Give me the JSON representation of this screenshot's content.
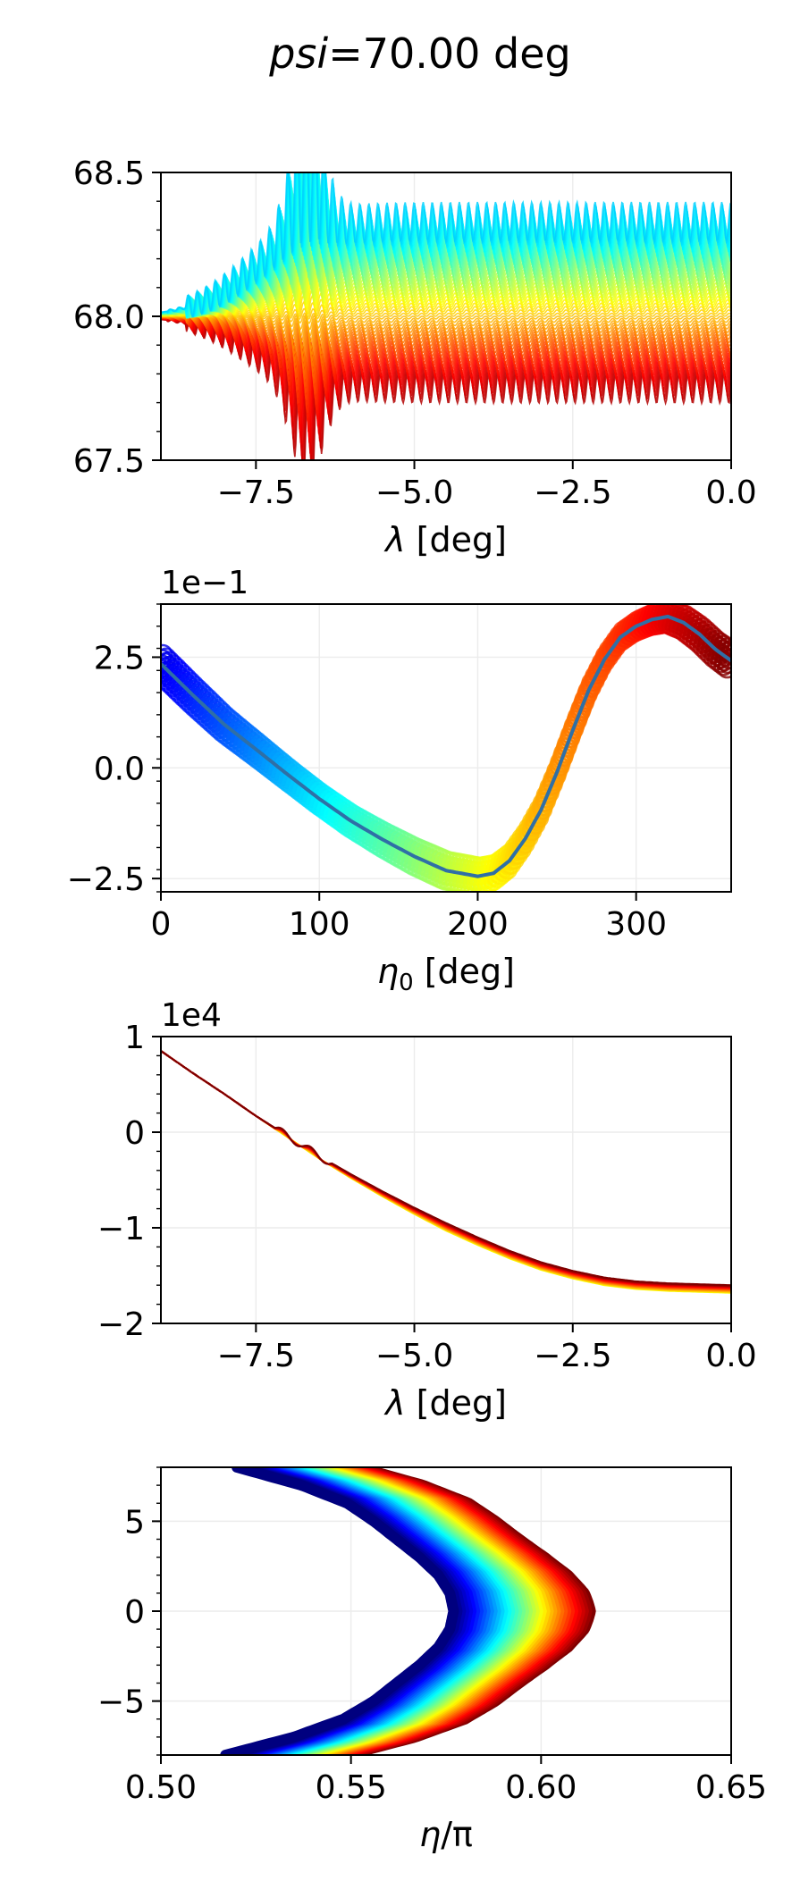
{
  "title": {
    "prefix": "psi",
    "suffix": "=70.00 deg"
  },
  "colormap_stops": [
    "#00007f",
    "#0000ff",
    "#007fff",
    "#00ffff",
    "#7fff7f",
    "#ffff00",
    "#ff7f00",
    "#ff0000",
    "#7f0000"
  ],
  "accent_line_color": "#2f6fa6",
  "chart_data": [
    {
      "id": "p1",
      "type": "line",
      "xlabel": {
        "symbol": "λ",
        "unit": " [deg]"
      },
      "ylabel": "",
      "xlim": [
        -9,
        0
      ],
      "ylim": [
        67.5,
        68.5
      ],
      "xticks": [
        -7.5,
        -5.0,
        -2.5,
        0.0
      ],
      "xtick_labels": [
        "−7.5",
        "−5.0",
        "−2.5",
        "0.0"
      ],
      "yticks": [
        67.5,
        68.0,
        68.5
      ],
      "ytick_labels": [
        "67.5",
        "68.0",
        "68.5"
      ],
      "offset_label": "",
      "grid": true,
      "series_count": 60,
      "series_desc": "oscillating family of trajectories; flat at 68.0 for λ < −8.6, spread onset near −7.5, final band between 67.75 and 68.33",
      "start_value": 68.0,
      "final_band": [
        67.75,
        68.33
      ],
      "onset_x": -7.6,
      "peak": {
        "x": -6.7,
        "max": 68.39,
        "min": 67.7
      }
    },
    {
      "id": "p2",
      "type": "scatter",
      "xlabel": {
        "symbol": "η",
        "sub": "0",
        "unit": " [deg]"
      },
      "ylabel": "",
      "xlim": [
        0,
        360
      ],
      "ylim": [
        -2.8,
        3.7
      ],
      "xticks": [
        0,
        100,
        200,
        300
      ],
      "xtick_labels": [
        "0",
        "100",
        "200",
        "300"
      ],
      "yticks": [
        -2.5,
        0.0,
        2.5
      ],
      "ytick_labels": [
        "−2.5",
        "0.0",
        "2.5"
      ],
      "offset_label": "1e−1",
      "grid": true,
      "scatter_band_halfwidth": 0.22,
      "line_points": {
        "x": [
          0,
          20,
          40,
          60,
          80,
          100,
          120,
          140,
          160,
          180,
          200,
          210,
          220,
          230,
          240,
          250,
          260,
          270,
          280,
          290,
          300,
          310,
          320,
          330,
          340,
          350,
          360
        ],
        "y": [
          2.35,
          1.65,
          0.98,
          0.42,
          -0.15,
          -0.7,
          -1.2,
          -1.62,
          -2.0,
          -2.32,
          -2.45,
          -2.38,
          -2.1,
          -1.6,
          -0.95,
          -0.1,
          0.85,
          1.75,
          2.45,
          2.95,
          3.2,
          3.35,
          3.42,
          3.28,
          3.02,
          2.68,
          2.42
        ]
      }
    },
    {
      "id": "p3",
      "type": "line",
      "xlabel": {
        "symbol": "λ",
        "unit": " [deg]"
      },
      "ylabel": "",
      "xlim": [
        -9,
        0
      ],
      "ylim": [
        -2,
        1
      ],
      "xticks": [
        -7.5,
        -5.0,
        -2.5,
        0.0
      ],
      "xtick_labels": [
        "−7.5",
        "−5.0",
        "−2.5",
        "0.0"
      ],
      "yticks": [
        -2,
        -1,
        0,
        1
      ],
      "ytick_labels": [
        "−2",
        "−1",
        "0",
        "1"
      ],
      "offset_label": "1e4",
      "grid": true,
      "series_count": 24,
      "curve_points": {
        "x": [
          -9.0,
          -8.5,
          -8.0,
          -7.5,
          -7.0,
          -6.5,
          -6.0,
          -5.5,
          -5.0,
          -4.5,
          -4.0,
          -3.5,
          -3.0,
          -2.5,
          -2.0,
          -1.5,
          -1.0,
          -0.5,
          0.0
        ],
        "y": [
          0.85,
          0.62,
          0.4,
          0.17,
          -0.04,
          -0.25,
          -0.44,
          -0.62,
          -0.79,
          -0.95,
          -1.1,
          -1.24,
          -1.36,
          -1.45,
          -1.52,
          -1.56,
          -1.58,
          -1.59,
          -1.6
        ]
      },
      "spread_max": 0.08
    },
    {
      "id": "p4",
      "type": "area",
      "xlabel": {
        "symbol": "η",
        "unit": "/π"
      },
      "ylabel": "",
      "xlim": [
        0.5,
        0.65
      ],
      "ylim": [
        -8,
        8
      ],
      "xticks": [
        0.5,
        0.55,
        0.6,
        0.65
      ],
      "xtick_labels": [
        "0.50",
        "0.55",
        "0.60",
        "0.65"
      ],
      "yticks": [
        -5,
        0,
        5
      ],
      "ytick_labels": [
        "−5",
        "0",
        "5"
      ],
      "offset_label": "",
      "grid": true,
      "series_count": 40,
      "curve_points": {
        "y": [
          -8,
          -7,
          -6,
          -5,
          -4,
          -3,
          -2,
          -1,
          0,
          1,
          2,
          3,
          4,
          5,
          6,
          7,
          8
        ],
        "x": [
          0.517,
          0.535,
          0.548,
          0.556,
          0.562,
          0.568,
          0.573,
          0.576,
          0.577,
          0.576,
          0.573,
          0.568,
          0.562,
          0.556,
          0.549,
          0.537,
          0.52
        ]
      },
      "band_width": 0.032
    }
  ]
}
